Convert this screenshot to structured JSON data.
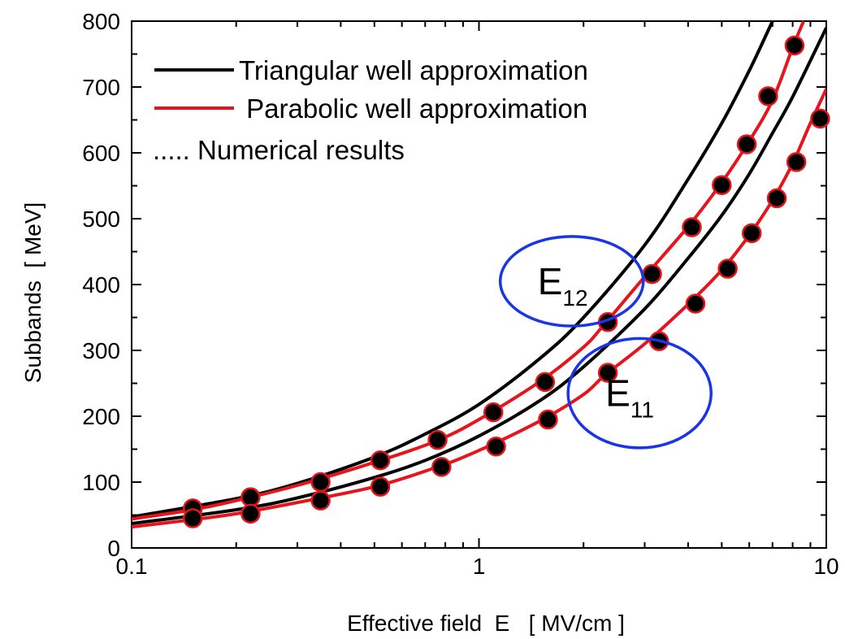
{
  "chart_data": {
    "type": "line",
    "xlabel": "Effective field  E   [ MV/cm ]",
    "ylabel": "Subbands  [ MeV]",
    "xscale": "log",
    "xlim": [
      0.1,
      10
    ],
    "ylim": [
      0,
      800
    ],
    "x_ticks": [
      "0.1",
      "1",
      "10"
    ],
    "y_ticks": [
      "0",
      "100",
      "200",
      "300",
      "400",
      "500",
      "600",
      "700",
      "800"
    ],
    "grid": false,
    "legend": {
      "placement": "top-left",
      "entries": [
        {
          "label": "Triangular well approximation",
          "style": "line",
          "color": "#000000"
        },
        {
          "label": " Parabolic well approximation",
          "style": "line",
          "color": "#e8141c"
        },
        {
          "label": "..... Numerical results",
          "style": "text-only",
          "color": "#000000"
        }
      ]
    },
    "series": [
      {
        "group": "E12",
        "kind": "triangular",
        "x": [
          0.1,
          0.2,
          0.3,
          0.5,
          0.7,
          1.0,
          1.5,
          2.0,
          3.0,
          4.0,
          5.0,
          6.0,
          7.0
        ],
        "y": [
          47,
          75,
          98,
          138,
          173,
          218,
          288,
          350,
          460,
          560,
          645,
          725,
          800
        ]
      },
      {
        "group": "E12",
        "kind": "parabolic",
        "x": [
          0.1,
          0.15,
          0.2,
          0.3,
          0.5,
          0.75,
          1.0,
          1.5,
          2.0,
          2.3,
          3.0,
          4.0,
          5.0,
          6.0,
          7.0,
          8.0,
          8.6
        ],
        "y": [
          44,
          58,
          72,
          95,
          130,
          162,
          195,
          253,
          305,
          340,
          412,
          488,
          555,
          618,
          680,
          760,
          800
        ]
      },
      {
        "group": "E11",
        "kind": "triangular",
        "x": [
          0.1,
          0.2,
          0.3,
          0.5,
          0.7,
          1.0,
          1.5,
          2.0,
          3.0,
          4.0,
          5.0,
          6.0,
          7.0,
          8.0,
          10.0
        ],
        "y": [
          37,
          58,
          76,
          107,
          133,
          170,
          224,
          275,
          363,
          440,
          505,
          568,
          630,
          685,
          790
        ]
      },
      {
        "group": "E11",
        "kind": "parabolic",
        "x": [
          0.1,
          0.15,
          0.2,
          0.3,
          0.5,
          0.75,
          1.0,
          1.5,
          2.0,
          2.3,
          3.0,
          4.0,
          5.0,
          6.0,
          7.0,
          8.0,
          9.0,
          10.0
        ],
        "y": [
          32,
          43,
          52,
          69,
          93,
          122,
          148,
          193,
          233,
          262,
          310,
          370,
          422,
          475,
          528,
          584,
          645,
          697
        ]
      },
      {
        "group": "E12",
        "kind": "numerical",
        "x": [
          0.15,
          0.22,
          0.35,
          0.52,
          0.76,
          1.1,
          1.55,
          2.35,
          3.15,
          4.1,
          5.0,
          5.9,
          6.8,
          8.1
        ],
        "y": [
          60,
          77,
          100,
          133,
          164,
          206,
          252,
          343,
          416,
          487,
          551,
          613,
          686,
          763
        ]
      },
      {
        "group": "E11",
        "kind": "numerical",
        "x": [
          0.15,
          0.22,
          0.35,
          0.52,
          0.78,
          1.12,
          1.58,
          2.35,
          3.3,
          4.2,
          5.2,
          6.1,
          7.2,
          8.2,
          9.6
        ],
        "y": [
          45,
          52,
          72,
          93,
          123,
          154,
          195,
          266,
          314,
          371,
          424,
          478,
          531,
          586,
          652
        ]
      }
    ],
    "annotations": [
      {
        "main": "E",
        "sub": "12",
        "cx": 1.85,
        "cy": 405,
        "rx_decades": 0.206,
        "ry_units": 68
      },
      {
        "main": "E",
        "sub": "11",
        "cx": 2.9,
        "cy": 235,
        "rx_decades": 0.206,
        "ry_units": 83
      }
    ],
    "colors": {
      "triangular": "#000000",
      "parabolic": "#e8141c",
      "marker_fill": "#000000",
      "marker_edge": "#e8141c",
      "annotation": "#1a35e6",
      "axis": "#000000"
    }
  }
}
